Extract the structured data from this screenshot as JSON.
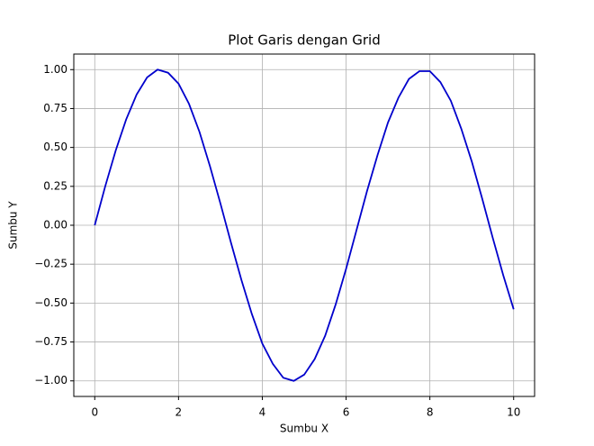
{
  "chart_data": {
    "type": "line",
    "title": "Plot Garis dengan Grid",
    "x_label": "Sumbu X",
    "y_label": "Sumbu Y",
    "x": [
      0,
      0.25,
      0.5,
      0.75,
      1,
      1.25,
      1.5,
      1.75,
      2,
      2.25,
      2.5,
      2.75,
      3,
      3.25,
      3.5,
      3.75,
      4,
      4.25,
      4.5,
      4.75,
      5,
      5.25,
      5.5,
      5.75,
      6,
      6.25,
      6.5,
      6.75,
      7,
      7.25,
      7.5,
      7.75,
      8,
      8.25,
      8.5,
      8.75,
      9,
      9.25,
      9.5,
      9.75,
      10
    ],
    "series": [
      {
        "color": "#0000cc",
        "values": [
          0,
          0.25,
          0.48,
          0.68,
          0.84,
          0.95,
          1.0,
          0.98,
          0.91,
          0.78,
          0.6,
          0.38,
          0.14,
          -0.11,
          -0.35,
          -0.57,
          -0.76,
          -0.89,
          -0.98,
          -1.0,
          -0.96,
          -0.86,
          -0.71,
          -0.51,
          -0.28,
          -0.03,
          0.22,
          0.45,
          0.66,
          0.82,
          0.94,
          0.99,
          0.99,
          0.92,
          0.8,
          0.62,
          0.41,
          0.17,
          -0.08,
          -0.32,
          -0.54
        ]
      }
    ],
    "xlim": [
      -0.5,
      10.5
    ],
    "ylim": [
      -1.1,
      1.1
    ],
    "xticks": [
      0,
      2,
      4,
      6,
      8,
      10
    ],
    "yticks": [
      {
        "value": -1,
        "label": "−1.00"
      },
      {
        "value": -0.75,
        "label": "−0.75"
      },
      {
        "value": -0.5,
        "label": "−0.50"
      },
      {
        "value": -0.25,
        "label": "−0.25"
      },
      {
        "value": 0,
        "label": "0.00"
      },
      {
        "value": 0.25,
        "label": "0.25"
      },
      {
        "value": 0.5,
        "label": "0.50"
      },
      {
        "value": 0.75,
        "label": "0.75"
      },
      {
        "value": 1,
        "label": "1.00"
      }
    ],
    "grid": true
  }
}
